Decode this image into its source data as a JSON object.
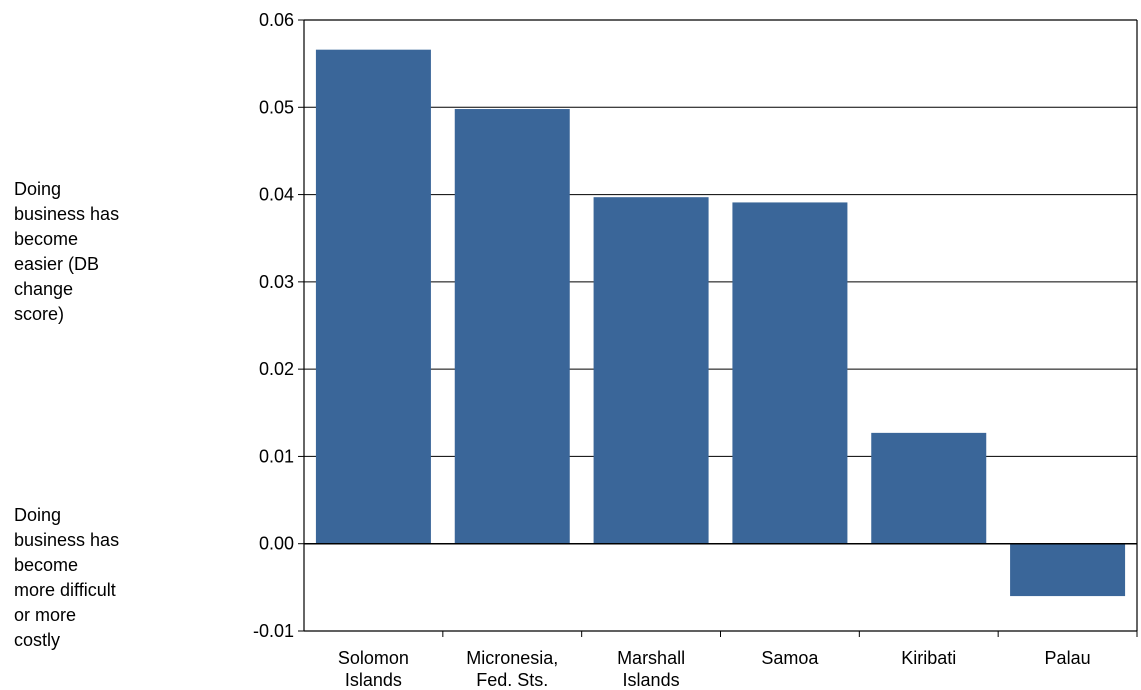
{
  "annotations": {
    "easier": "Doing\nbusiness has\nbecome\neasier (DB\nchange\nscore)",
    "harder": "Doing\nbusiness has\nbecome\nmore difficult\nor more\ncostly"
  },
  "colors": {
    "bar": "#3a6699",
    "axis": "#000000",
    "grid": "#000000"
  },
  "chart_data": {
    "type": "bar",
    "categories": [
      "Solomon\nIslands",
      "Micronesia,\nFed. Sts.",
      "Marshall\nIslands",
      "Samoa",
      "Kiribati",
      "Palau"
    ],
    "values": [
      0.0566,
      0.0498,
      0.0397,
      0.0391,
      0.0127,
      -0.006
    ],
    "ylim": [
      -0.01,
      0.06
    ],
    "yticks": [
      "-0.01",
      "0.00",
      "0.01",
      "0.02",
      "0.03",
      "0.04",
      "0.05",
      "0.06"
    ],
    "grid": true,
    "legend": "none"
  }
}
